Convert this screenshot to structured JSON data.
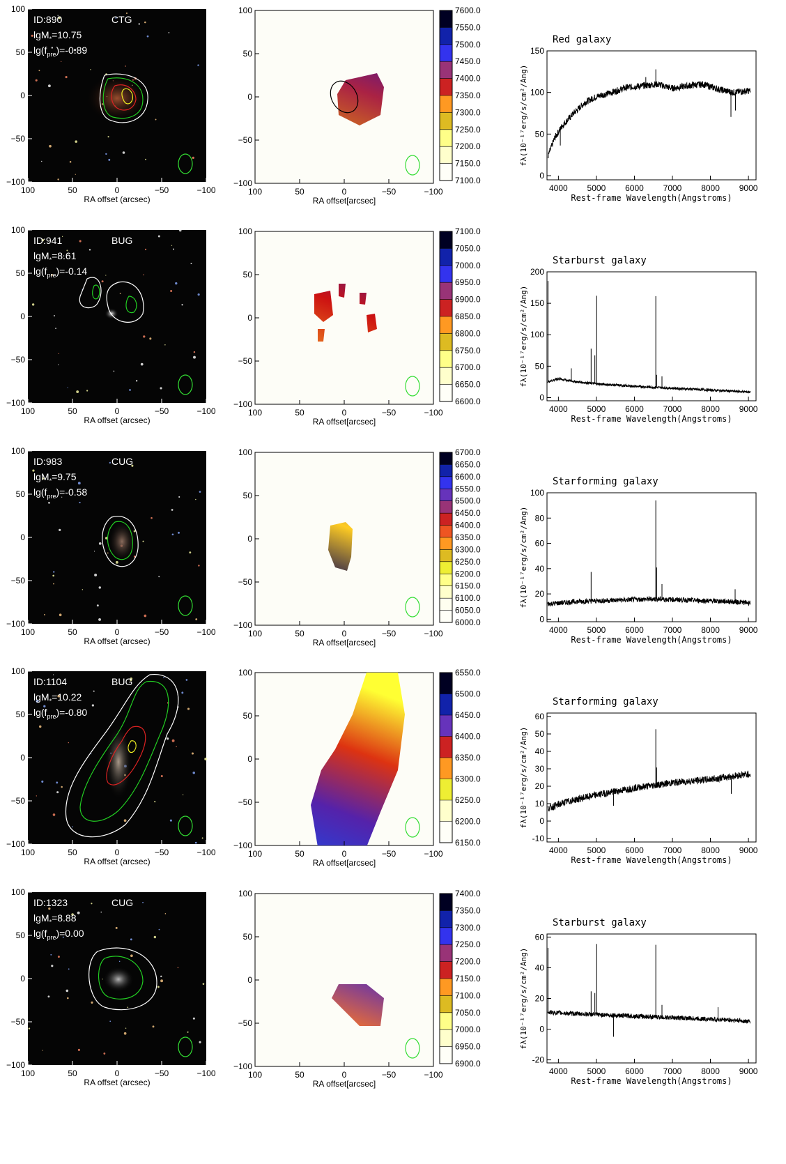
{
  "rows": [
    {
      "id_label": "ID:890",
      "class_label": "CTG",
      "mass_label": "lgM",
      "mass_value": "=10.75",
      "fpre_label": "lg(f",
      "fpre_sub": "pre",
      "fpre_value": ")=-0.89",
      "velocity_ticks": [
        "7600.0",
        "7550.0",
        "7500.0",
        "7450.0",
        "7400.0",
        "7350.0",
        "7300.0",
        "7250.0",
        "7200.0",
        "7150.0",
        "7100.0"
      ],
      "spectrum": {
        "title": "Red galaxy",
        "ylabel": "fλ(10⁻¹⁷erg/s/cm²/Ang)",
        "xlabel": "Rest-frame Wavelength(Angstroms)",
        "ylim": [
          -5,
          150
        ],
        "yticks": [
          0,
          50,
          100,
          150
        ],
        "continuum": [
          [
            3700,
            20
          ],
          [
            3900,
            45
          ],
          [
            4100,
            60
          ],
          [
            4400,
            75
          ],
          [
            4700,
            88
          ],
          [
            5000,
            95
          ],
          [
            5400,
            100
          ],
          [
            5800,
            106
          ],
          [
            6200,
            108
          ],
          [
            6600,
            110
          ],
          [
            7000,
            105
          ],
          [
            7400,
            108
          ],
          [
            7800,
            110
          ],
          [
            8200,
            104
          ],
          [
            8600,
            100
          ],
          [
            9000,
            102
          ]
        ],
        "lines": [
          [
            4050,
            -20
          ],
          [
            6563,
            18
          ],
          [
            6300,
            10
          ],
          [
            8540,
            -30
          ],
          [
            8660,
            -22
          ]
        ],
        "noise": 4
      }
    },
    {
      "id_label": "ID:941",
      "class_label": "BUG",
      "mass_label": "lgM",
      "mass_value": "=8.61",
      "fpre_label": "lg(f",
      "fpre_sub": "pre",
      "fpre_value": ")=-0.14",
      "velocity_ticks": [
        "7100.0",
        "7050.0",
        "7000.0",
        "6950.0",
        "6900.0",
        "6850.0",
        "6800.0",
        "6750.0",
        "6700.0",
        "6650.0",
        "6600.0"
      ],
      "spectrum": {
        "title": "Starburst galaxy",
        "ylabel": "fλ(10⁻¹⁷erg/s/cm²/Ang)",
        "xlabel": "Rest-frame Wavelength(Angstroms)",
        "ylim": [
          -5,
          200
        ],
        "yticks": [
          0,
          50,
          100,
          150,
          200
        ],
        "continuum": [
          [
            3700,
            25
          ],
          [
            4000,
            30
          ],
          [
            4500,
            25
          ],
          [
            5000,
            22
          ],
          [
            6000,
            18
          ],
          [
            7000,
            15
          ],
          [
            8000,
            12
          ],
          [
            9000,
            9
          ]
        ],
        "lines": [
          [
            3727,
            160
          ],
          [
            4340,
            20
          ],
          [
            4861,
            55
          ],
          [
            4959,
            45
          ],
          [
            5007,
            140
          ],
          [
            6563,
            145
          ],
          [
            6584,
            20
          ],
          [
            6725,
            18
          ]
        ],
        "noise": 2
      }
    },
    {
      "id_label": "ID:983",
      "class_label": "CUG",
      "mass_label": "lgM",
      "mass_value": "=9.75",
      "fpre_label": "lg(f",
      "fpre_sub": "pre",
      "fpre_value": ")=-0.58",
      "velocity_ticks": [
        "6700.0",
        "6650.0",
        "6600.0",
        "6550.0",
        "6500.0",
        "6450.0",
        "6400.0",
        "6350.0",
        "6300.0",
        "6250.0",
        "6200.0",
        "6150.0",
        "6100.0",
        "6050.0",
        "6000.0"
      ],
      "spectrum": {
        "title": "Starforming galaxy",
        "ylabel": "fλ(10⁻¹⁷erg/s/cm²/Ang)",
        "xlabel": "Rest-frame Wavelength(Angstroms)",
        "ylim": [
          -2,
          100
        ],
        "yticks": [
          0,
          20,
          40,
          60,
          80,
          100
        ],
        "continuum": [
          [
            3700,
            12
          ],
          [
            4500,
            14
          ],
          [
            5500,
            15
          ],
          [
            6500,
            16
          ],
          [
            7500,
            15
          ],
          [
            8500,
            14
          ],
          [
            9000,
            13
          ]
        ],
        "lines": [
          [
            4861,
            23
          ],
          [
            6563,
            78
          ],
          [
            6584,
            25
          ],
          [
            6725,
            12
          ],
          [
            8650,
            10
          ]
        ],
        "noise": 2
      }
    },
    {
      "id_label": "ID:1104",
      "class_label": "BUG",
      "mass_label": "lgM",
      "mass_value": "=10.22",
      "fpre_label": "lg(f",
      "fpre_sub": "pre",
      "fpre_value": ")=-0.80",
      "velocity_ticks": [
        "6550.0",
        "6500.0",
        "6450.0",
        "6400.0",
        "6350.0",
        "6300.0",
        "6250.0",
        "6200.0",
        "6150.0"
      ],
      "spectrum": {
        "title": "Starforming galaxy",
        "ylabel": "fλ(10⁻¹⁷erg/s/cm²/Ang)",
        "xlabel": "Rest-frame Wavelength(Angstroms)",
        "ylim": [
          -12,
          62
        ],
        "yticks": [
          -10,
          0,
          10,
          20,
          30,
          40,
          50,
          60
        ],
        "continuum": [
          [
            3700,
            7
          ],
          [
            4200,
            11
          ],
          [
            5000,
            15
          ],
          [
            6000,
            19
          ],
          [
            7000,
            22
          ],
          [
            8000,
            24
          ],
          [
            9000,
            27
          ]
        ],
        "lines": [
          [
            6563,
            32
          ],
          [
            6584,
            10
          ],
          [
            5450,
            -8
          ],
          [
            8550,
            -10
          ]
        ],
        "noise": 2
      }
    },
    {
      "id_label": "ID:1323",
      "class_label": "CUG",
      "mass_label": "lgM",
      "mass_value": "=8.88",
      "fpre_label": "lg(f",
      "fpre_sub": "pre",
      "fpre_value": ")=0.00",
      "velocity_ticks": [
        "7400.0",
        "7350.0",
        "7300.0",
        "7250.0",
        "7200.0",
        "7150.0",
        "7100.0",
        "7050.0",
        "7000.0",
        "6950.0",
        "6900.0"
      ],
      "spectrum": {
        "title": "Starburst galaxy",
        "ylabel": "fλ(10⁻¹⁷erg/s/cm²/Ang)",
        "xlabel": "Rest-frame Wavelength(Angstroms)",
        "ylim": [
          -22,
          62
        ],
        "yticks": [
          -20,
          0,
          20,
          40,
          60
        ],
        "continuum": [
          [
            3700,
            11
          ],
          [
            4500,
            10
          ],
          [
            5500,
            9
          ],
          [
            6500,
            8
          ],
          [
            7500,
            7
          ],
          [
            8500,
            6
          ],
          [
            9000,
            5
          ]
        ],
        "lines": [
          [
            3727,
            42
          ],
          [
            4861,
            15
          ],
          [
            4959,
            14
          ],
          [
            5007,
            46
          ],
          [
            6563,
            47
          ],
          [
            6725,
            8
          ],
          [
            5450,
            -14
          ],
          [
            8200,
            8
          ]
        ],
        "noise": 1.5
      }
    }
  ],
  "image_panel": {
    "xlabel": "RA offset (arcsec)",
    "xticks": [
      "100",
      "50",
      "0",
      "−50",
      "−100"
    ],
    "yticks": [
      "100",
      "50",
      "0",
      "−50",
      "−100"
    ]
  },
  "velocity_panel": {
    "xlabel": "RA offset[arcsec]",
    "xticks": [
      "100",
      "50",
      "0",
      "−50",
      "−100"
    ],
    "yticks": [
      "100",
      "50",
      "0",
      "−50",
      "−100"
    ]
  },
  "spectrum_xticks": [
    "4000",
    "5000",
    "6000",
    "7000",
    "8000",
    "9000"
  ],
  "colors": {
    "beam": "#33dd33",
    "contour_white": "#ffffff",
    "contour_green": "#22cc22",
    "contour_red": "#dd2222",
    "contour_yellow": "#eeee22"
  }
}
